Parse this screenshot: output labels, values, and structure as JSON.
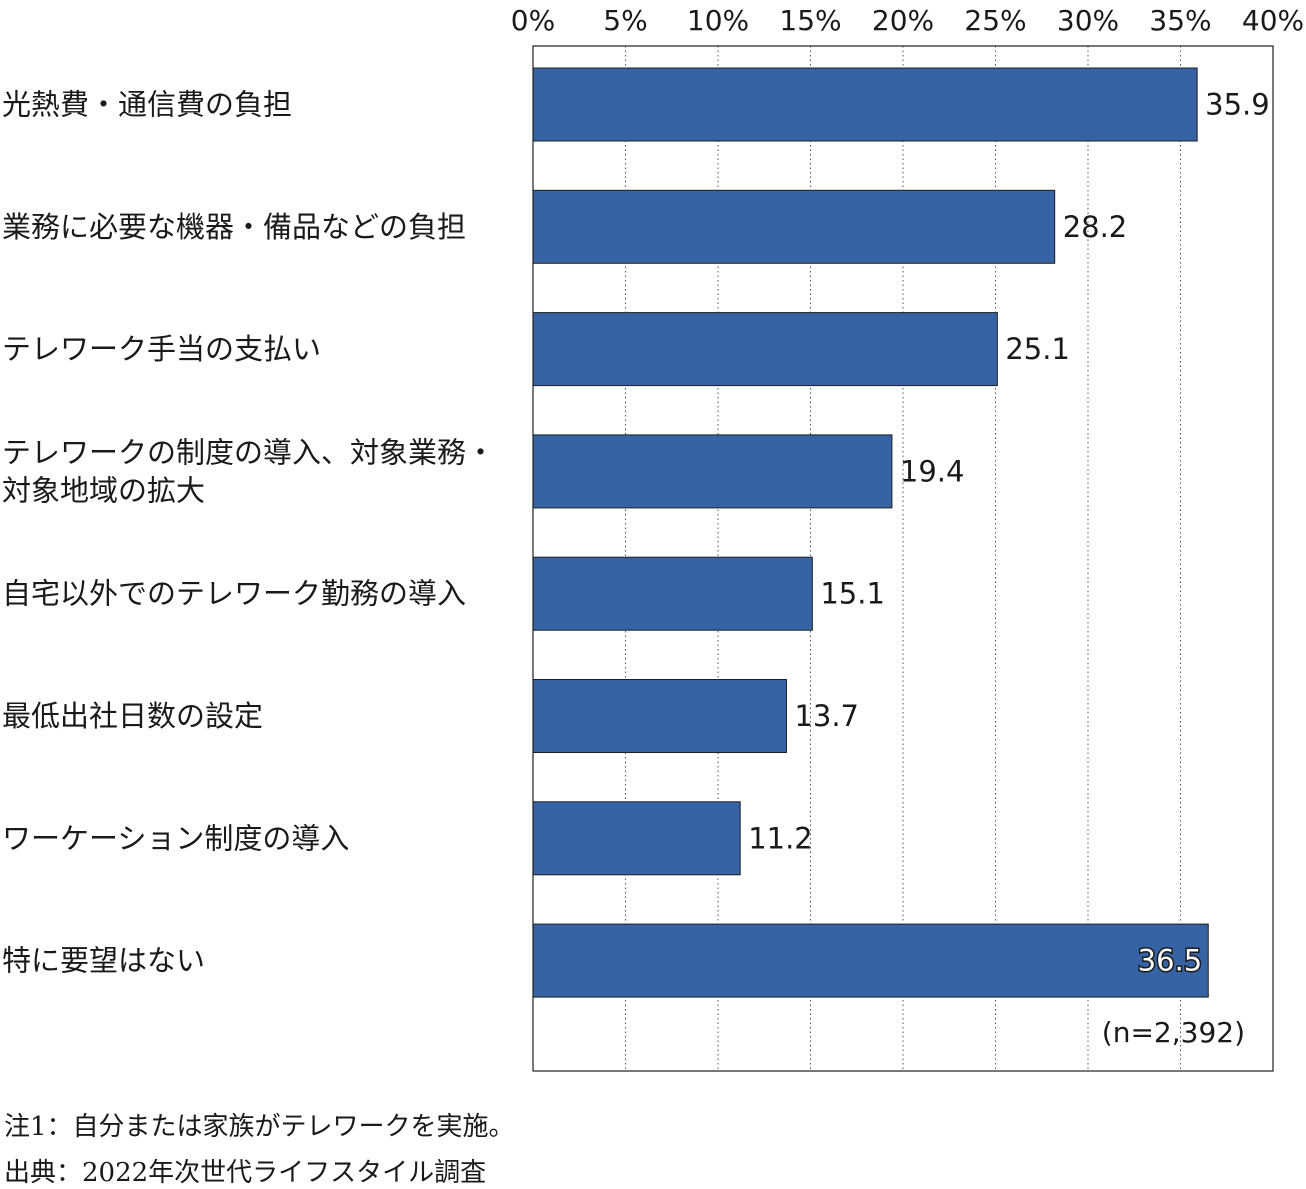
{
  "chart_data": {
    "type": "bar",
    "orientation": "horizontal",
    "categories": [
      [
        "光熱費・通信費の負担"
      ],
      [
        "業務に必要な機器・備品などの負担"
      ],
      [
        "テレワーク手当の支払い"
      ],
      [
        "テレワークの制度の導入、対象業務・",
        "対象地域の拡大"
      ],
      [
        "自宅以外でのテレワーク勤務の導入"
      ],
      [
        "最低出社日数の設定"
      ],
      [
        "ワーケーション制度の導入"
      ],
      [
        "特に要望はない"
      ]
    ],
    "values": [
      35.9,
      28.2,
      25.1,
      19.4,
      15.1,
      13.7,
      11.2,
      36.5
    ],
    "value_labels": [
      "35.9",
      "28.2",
      "25.1",
      "19.4",
      "15.1",
      "13.7",
      "11.2",
      "36.5"
    ],
    "xlim": [
      0,
      40
    ],
    "ticks": [
      0,
      5,
      10,
      15,
      20,
      25,
      30,
      35,
      40
    ],
    "tick_labels": [
      "0%",
      "5%",
      "10%",
      "15%",
      "20%",
      "25%",
      "30%",
      "35%",
      "40%"
    ],
    "grid": "vertical-dotted",
    "bar_color": "#3563a3",
    "sample_note": "(n=2,392)"
  },
  "notes": {
    "note1": "注1：自分または家族がテレワークを実施。",
    "source": "出典：2022年次世代ライフスタイル調査"
  }
}
